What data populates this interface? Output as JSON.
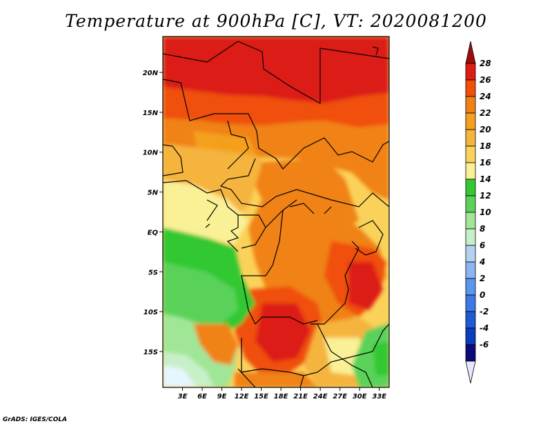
{
  "title": "Temperature at 900hPa [C], VT: 2020081200",
  "footer": "GrADS: IGES/COLA",
  "map": {
    "lon_range": [
      0,
      34.5
    ],
    "lat_range": [
      -19.5,
      24.5
    ],
    "x_ticks": [
      "3E",
      "6E",
      "9E",
      "12E",
      "15E",
      "18E",
      "21E",
      "24E",
      "27E",
      "30E",
      "33E"
    ],
    "x_tick_values": [
      3,
      6,
      9,
      12,
      15,
      18,
      21,
      24,
      27,
      30,
      33
    ],
    "y_ticks": [
      "20N",
      "15N",
      "10N",
      "5N",
      "EQ",
      "5S",
      "10S",
      "15S"
    ],
    "y_tick_values": [
      20,
      15,
      10,
      5,
      0,
      -5,
      -10,
      -15
    ]
  },
  "colorbar": {
    "labels": [
      "28",
      "26",
      "24",
      "22",
      "20",
      "18",
      "16",
      "14",
      "12",
      "10",
      "8",
      "6",
      "4",
      "2",
      "0",
      "-2",
      "-4",
      "-6"
    ],
    "colors": [
      "#a50a0a",
      "#dc1e14",
      "#f0500a",
      "#f08214",
      "#f5a01e",
      "#f5b43c",
      "#fad25a",
      "#faf096",
      "#32c832",
      "#5ad25a",
      "#a0e696",
      "#c8f0c8",
      "#b4d2f0",
      "#8cb4f0",
      "#5a96eb",
      "#3c78e6",
      "#1e5ad2",
      "#0a3cbe",
      "#0a0a78",
      "#e6e6ff"
    ]
  }
}
